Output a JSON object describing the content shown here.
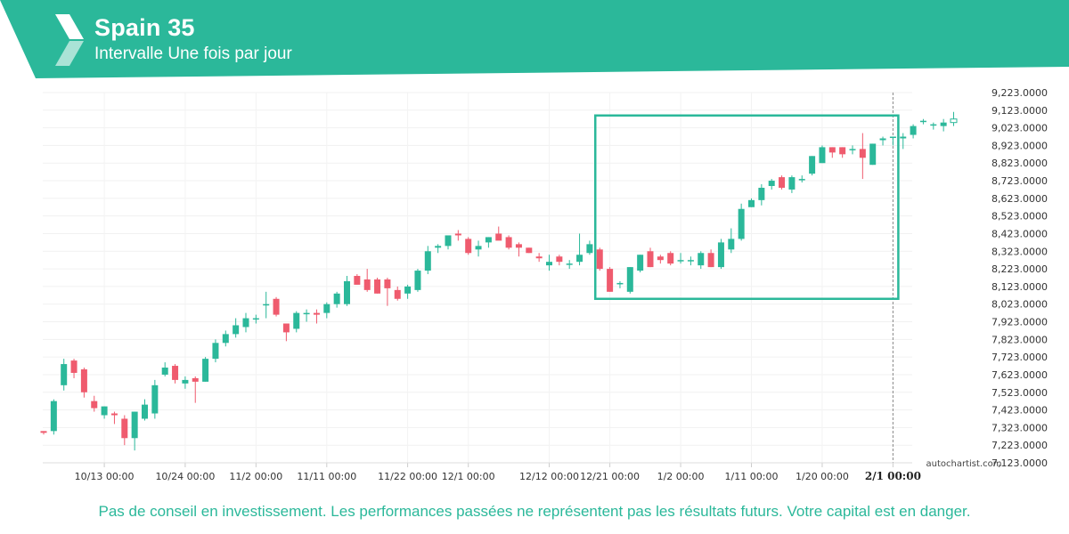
{
  "header": {
    "title": "Spain 35",
    "subtitle": "Intervalle Une fois par jour"
  },
  "footer": {
    "disclaimer": "Pas de conseil en investissement. Les performances passées ne représentent pas les résultats futurs. Votre capital est en danger.",
    "watermark": "autochartist.com"
  },
  "colors": {
    "brand": "#2bb89a",
    "up": "#2bb89a",
    "down": "#ef5b6e"
  },
  "chart_data": {
    "type": "candlestick",
    "title": "Spain 35",
    "y_ticks": [
      "9,223.0000",
      "9,123.0000",
      "9,023.0000",
      "8,923.0000",
      "8,823.0000",
      "8,723.0000",
      "8,623.0000",
      "8,523.0000",
      "8,423.0000",
      "8,323.0000",
      "8,223.0000",
      "8,123.0000",
      "8,023.0000",
      "7,923.0000",
      "7,823.0000",
      "7,723.0000",
      "7,623.0000",
      "7,523.0000",
      "7,423.0000",
      "7,323.0000",
      "7,223.0000",
      "7,123.0000"
    ],
    "ylim": [
      7123,
      9223
    ],
    "x_ticks": [
      {
        "label": "10/13 00:00",
        "index": 6
      },
      {
        "label": "10/24 00:00",
        "index": 14
      },
      {
        "label": "11/2 00:00",
        "index": 21
      },
      {
        "label": "11/11 00:00",
        "index": 28
      },
      {
        "label": "11/22 00:00",
        "index": 36
      },
      {
        "label": "12/1 00:00",
        "index": 42
      },
      {
        "label": "12/12 00:00",
        "index": 50
      },
      {
        "label": "12/21 00:00",
        "index": 56
      },
      {
        "label": "1/2 00:00",
        "index": 63
      },
      {
        "label": "1/11 00:00",
        "index": 70
      },
      {
        "label": "1/20 00:00",
        "index": 77
      },
      {
        "label": "2/1 00:00",
        "index": 84,
        "current": true
      }
    ],
    "highlight_box": {
      "start_index": 55,
      "end_index": 84,
      "low": 8053,
      "high": 9093
    },
    "candles": [
      {
        "o": 7303,
        "h": 7303,
        "l": 7283,
        "c": 7293
      },
      {
        "o": 7303,
        "h": 7483,
        "l": 7283,
        "c": 7473
      },
      {
        "o": 7563,
        "h": 7713,
        "l": 7533,
        "c": 7683
      },
      {
        "o": 7703,
        "h": 7713,
        "l": 7603,
        "c": 7633
      },
      {
        "o": 7653,
        "h": 7663,
        "l": 7493,
        "c": 7523
      },
      {
        "o": 7473,
        "h": 7503,
        "l": 7413,
        "c": 7433
      },
      {
        "o": 7393,
        "h": 7443,
        "l": 7373,
        "c": 7443
      },
      {
        "o": 7403,
        "h": 7413,
        "l": 7343,
        "c": 7393
      },
      {
        "o": 7373,
        "h": 7393,
        "l": 7223,
        "c": 7263
      },
      {
        "o": 7263,
        "h": 7413,
        "l": 7193,
        "c": 7413
      },
      {
        "o": 7373,
        "h": 7483,
        "l": 7363,
        "c": 7453
      },
      {
        "o": 7403,
        "h": 7593,
        "l": 7373,
        "c": 7563
      },
      {
        "o": 7623,
        "h": 7693,
        "l": 7613,
        "c": 7663
      },
      {
        "o": 7673,
        "h": 7683,
        "l": 7573,
        "c": 7593
      },
      {
        "o": 7573,
        "h": 7613,
        "l": 7543,
        "c": 7593
      },
      {
        "o": 7603,
        "h": 7613,
        "l": 7463,
        "c": 7583
      },
      {
        "o": 7583,
        "h": 7723,
        "l": 7583,
        "c": 7713
      },
      {
        "o": 7713,
        "h": 7823,
        "l": 7693,
        "c": 7803
      },
      {
        "o": 7803,
        "h": 7873,
        "l": 7783,
        "c": 7853
      },
      {
        "o": 7853,
        "h": 7943,
        "l": 7833,
        "c": 7903
      },
      {
        "o": 7893,
        "h": 7973,
        "l": 7863,
        "c": 7943
      },
      {
        "o": 7943,
        "h": 7963,
        "l": 7913,
        "c": 7943
      },
      {
        "o": 8023,
        "h": 8093,
        "l": 7943,
        "c": 8023
      },
      {
        "o": 8053,
        "h": 8063,
        "l": 7953,
        "c": 7963
      },
      {
        "o": 7913,
        "h": 7913,
        "l": 7813,
        "c": 7863
      },
      {
        "o": 7883,
        "h": 7983,
        "l": 7863,
        "c": 7973
      },
      {
        "o": 7973,
        "h": 7993,
        "l": 7923,
        "c": 7973
      },
      {
        "o": 7973,
        "h": 7993,
        "l": 7913,
        "c": 7963
      },
      {
        "o": 7973,
        "h": 8033,
        "l": 7943,
        "c": 8023
      },
      {
        "o": 8023,
        "h": 8093,
        "l": 8003,
        "c": 8083
      },
      {
        "o": 8023,
        "h": 8183,
        "l": 8013,
        "c": 8153
      },
      {
        "o": 8183,
        "h": 8193,
        "l": 8133,
        "c": 8133
      },
      {
        "o": 8163,
        "h": 8223,
        "l": 8093,
        "c": 8103
      },
      {
        "o": 8163,
        "h": 8173,
        "l": 8083,
        "c": 8083
      },
      {
        "o": 8163,
        "h": 8173,
        "l": 8013,
        "c": 8113
      },
      {
        "o": 8103,
        "h": 8123,
        "l": 8043,
        "c": 8053
      },
      {
        "o": 8083,
        "h": 8133,
        "l": 8053,
        "c": 8123
      },
      {
        "o": 8103,
        "h": 8223,
        "l": 8093,
        "c": 8213
      },
      {
        "o": 8213,
        "h": 8353,
        "l": 8193,
        "c": 8323
      },
      {
        "o": 8343,
        "h": 8363,
        "l": 8313,
        "c": 8353
      },
      {
        "o": 8353,
        "h": 8413,
        "l": 8333,
        "c": 8413
      },
      {
        "o": 8423,
        "h": 8443,
        "l": 8383,
        "c": 8413
      },
      {
        "o": 8393,
        "h": 8403,
        "l": 8303,
        "c": 8313
      },
      {
        "o": 8333,
        "h": 8383,
        "l": 8293,
        "c": 8353
      },
      {
        "o": 8373,
        "h": 8403,
        "l": 8343,
        "c": 8403
      },
      {
        "o": 8423,
        "h": 8463,
        "l": 8393,
        "c": 8383
      },
      {
        "o": 8403,
        "h": 8413,
        "l": 8333,
        "c": 8343
      },
      {
        "o": 8363,
        "h": 8373,
        "l": 8293,
        "c": 8343
      },
      {
        "o": 8343,
        "h": 8343,
        "l": 8313,
        "c": 8313
      },
      {
        "o": 8293,
        "h": 8313,
        "l": 8263,
        "c": 8283
      },
      {
        "o": 8243,
        "h": 8303,
        "l": 8213,
        "c": 8263
      },
      {
        "o": 8293,
        "h": 8303,
        "l": 8243,
        "c": 8263
      },
      {
        "o": 8253,
        "h": 8273,
        "l": 8223,
        "c": 8253
      },
      {
        "o": 8263,
        "h": 8423,
        "l": 8243,
        "c": 8303
      },
      {
        "o": 8313,
        "h": 8383,
        "l": 8303,
        "c": 8363
      },
      {
        "o": 8333,
        "h": 8343,
        "l": 8213,
        "c": 8223
      },
      {
        "o": 8223,
        "h": 8233,
        "l": 8093,
        "c": 8093
      },
      {
        "o": 8143,
        "h": 8153,
        "l": 8113,
        "c": 8143
      },
      {
        "o": 8093,
        "h": 8233,
        "l": 8083,
        "c": 8233
      },
      {
        "o": 8213,
        "h": 8303,
        "l": 8203,
        "c": 8303
      },
      {
        "o": 8323,
        "h": 8343,
        "l": 8233,
        "c": 8233
      },
      {
        "o": 8293,
        "h": 8303,
        "l": 8253,
        "c": 8273
      },
      {
        "o": 8313,
        "h": 8323,
        "l": 8243,
        "c": 8253
      },
      {
        "o": 8273,
        "h": 8313,
        "l": 8253,
        "c": 8273
      },
      {
        "o": 8273,
        "h": 8293,
        "l": 8243,
        "c": 8273
      },
      {
        "o": 8243,
        "h": 8323,
        "l": 8223,
        "c": 8313
      },
      {
        "o": 8313,
        "h": 8333,
        "l": 8233,
        "c": 8233
      },
      {
        "o": 8233,
        "h": 8393,
        "l": 8223,
        "c": 8373
      },
      {
        "o": 8333,
        "h": 8453,
        "l": 8313,
        "c": 8393
      },
      {
        "o": 8393,
        "h": 8593,
        "l": 8383,
        "c": 8563
      },
      {
        "o": 8573,
        "h": 8623,
        "l": 8573,
        "c": 8613
      },
      {
        "o": 8613,
        "h": 8703,
        "l": 8583,
        "c": 8683
      },
      {
        "o": 8693,
        "h": 8733,
        "l": 8673,
        "c": 8723
      },
      {
        "o": 8743,
        "h": 8753,
        "l": 8673,
        "c": 8683
      },
      {
        "o": 8673,
        "h": 8753,
        "l": 8653,
        "c": 8743
      },
      {
        "o": 8733,
        "h": 8753,
        "l": 8713,
        "c": 8733
      },
      {
        "o": 8763,
        "h": 8863,
        "l": 8753,
        "c": 8863
      },
      {
        "o": 8823,
        "h": 8923,
        "l": 8823,
        "c": 8913
      },
      {
        "o": 8913,
        "h": 8913,
        "l": 8853,
        "c": 8883
      },
      {
        "o": 8913,
        "h": 8913,
        "l": 8853,
        "c": 8873
      },
      {
        "o": 8903,
        "h": 8923,
        "l": 8873,
        "c": 8903
      },
      {
        "o": 8903,
        "h": 8993,
        "l": 8733,
        "c": 8853
      },
      {
        "o": 8813,
        "h": 8933,
        "l": 8813,
        "c": 8933
      },
      {
        "o": 8953,
        "h": 8973,
        "l": 8923,
        "c": 8963
      },
      {
        "o": 8973,
        "h": 8973,
        "l": 8923,
        "c": 8973
      },
      {
        "o": 8963,
        "h": 8993,
        "l": 8903,
        "c": 8973
      },
      {
        "o": 8983,
        "h": 9043,
        "l": 8963,
        "c": 9033
      },
      {
        "o": 9063,
        "h": 9073,
        "l": 9043,
        "c": 9063
      },
      {
        "o": 9043,
        "h": 9053,
        "l": 9013,
        "c": 9043
      },
      {
        "o": 9033,
        "h": 9073,
        "l": 9003,
        "c": 9053
      },
      {
        "o": 9053,
        "h": 9113,
        "l": 9033,
        "c": 9073
      }
    ]
  }
}
